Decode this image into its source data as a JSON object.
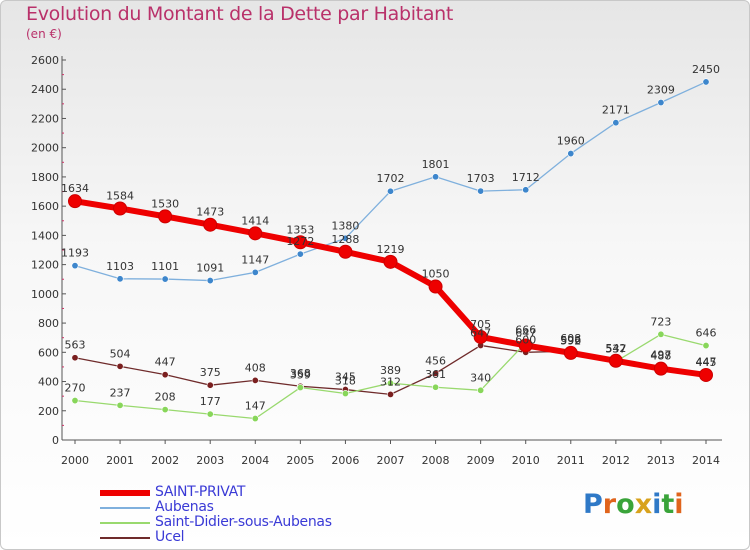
{
  "title": "Evolution du Montant de la Dette par Habitant",
  "unit_label": "(en €)",
  "logo_text": "Proxiti",
  "chart_data": {
    "type": "line",
    "title": "Evolution du Montant de la Dette par Habitant",
    "ylabel": "(en €)",
    "xlabel": "",
    "x": [
      "2000",
      "2001",
      "2002",
      "2003",
      "2004",
      "2005",
      "2006",
      "2007",
      "2008",
      "2009",
      "2010",
      "2011",
      "2012",
      "2013",
      "2014"
    ],
    "ylim": [
      0,
      2600
    ],
    "yticks": [
      "0",
      "200",
      "400",
      "600",
      "800",
      "1000",
      "1200",
      "1400",
      "1600",
      "1800",
      "2000",
      "2200",
      "2400",
      "2600"
    ],
    "grid": false,
    "legend_position": "bottom-left",
    "series": [
      {
        "name": "SAINT-PRIVAT",
        "color": "#ee0000",
        "values": [
          1634,
          1584,
          1530,
          1473,
          1414,
          1353,
          1288,
          1219,
          1050,
          705,
          647,
          596,
          542,
          488,
          445
        ]
      },
      {
        "name": "Aubenas",
        "color": "#7fb0dd",
        "values": [
          1193,
          1103,
          1101,
          1091,
          1147,
          1272,
          1380,
          1702,
          1801,
          1703,
          1712,
          1960,
          2171,
          2309,
          2450
        ]
      },
      {
        "name": "Saint-Didier-sous-Aubenas",
        "color": "#99d96e",
        "values": [
          270,
          237,
          208,
          177,
          147,
          359,
          318,
          389,
          361,
          340,
          666,
          592,
          537,
          723,
          646
        ]
      },
      {
        "name": "Ucel",
        "color": "#6f2b2b",
        "values": [
          563,
          504,
          447,
          375,
          408,
          368,
          345,
          312,
          456,
          647,
          600,
          608,
          537,
          497,
          447
        ]
      }
    ]
  }
}
